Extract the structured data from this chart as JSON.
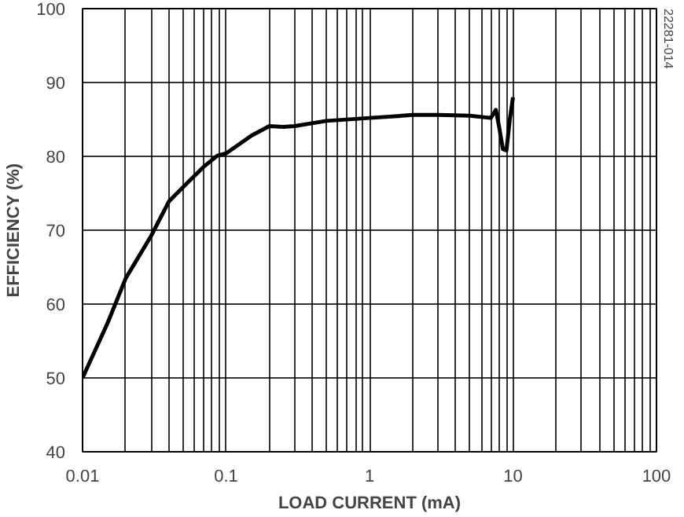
{
  "chart_data": {
    "type": "line",
    "xlabel": "LOAD CURRENT (mA)",
    "ylabel": "EFFICIENCY (%)",
    "log": "x",
    "grid": true,
    "xlim": [
      0.01,
      100
    ],
    "xticks": [
      0.01,
      0.1,
      1,
      10,
      100
    ],
    "ylim": [
      40,
      100
    ],
    "yticks": [
      40,
      50,
      60,
      70,
      80,
      90,
      100
    ],
    "annotations": [
      "22281-014"
    ],
    "series": [
      {
        "color": "#000000",
        "x": [
          0.01,
          0.015,
          0.02,
          0.03,
          0.04,
          0.05,
          0.07,
          0.087,
          0.1,
          0.15,
          0.2,
          0.25,
          0.3,
          0.5,
          1,
          2,
          3,
          5,
          7,
          7.6,
          8,
          8.5,
          9,
          9.5,
          10
        ],
        "values": [
          50,
          57.5,
          63.5,
          69.2,
          73.9,
          75.8,
          78.6,
          80.1,
          80.4,
          82.8,
          84.1,
          84.0,
          84.1,
          84.8,
          85.2,
          85.6,
          85.6,
          85.5,
          85.2,
          86.3,
          84,
          81,
          80.8,
          85,
          88
        ]
      }
    ]
  }
}
